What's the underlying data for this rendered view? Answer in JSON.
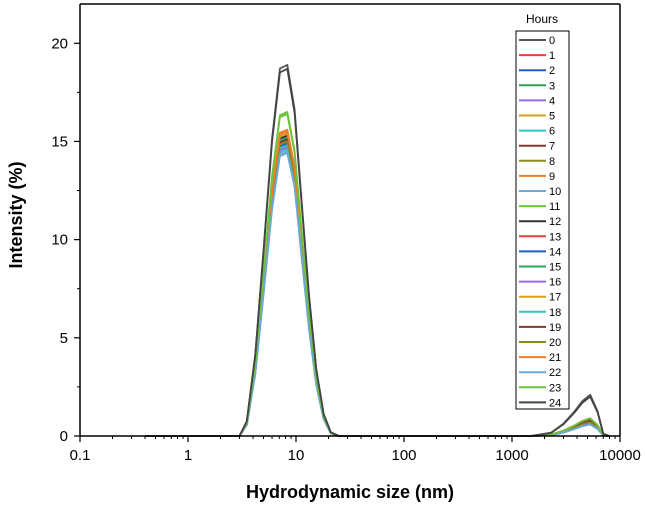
{
  "chart_data": {
    "type": "line",
    "xlabel": "Hydrodynamic size (nm)",
    "ylabel": "Intensity (%)",
    "x_scale": "log",
    "xlim": [
      0.1,
      10000
    ],
    "ylim": [
      0,
      22
    ],
    "x_ticks": [
      0.1,
      1,
      10,
      100,
      1000,
      10000
    ],
    "x_tick_labels": [
      "0.1",
      "1",
      "10",
      "100",
      "1000",
      "10000"
    ],
    "y_ticks": [
      0,
      5,
      10,
      15,
      20
    ],
    "y_tick_labels": [
      "0",
      "5",
      "10",
      "15",
      "20"
    ],
    "grid": false,
    "legend_title": "Hours",
    "legend_position": "top-right",
    "series": [
      {
        "name": "0",
        "color": "#555555",
        "peak": 18.9,
        "tail": 2.1
      },
      {
        "name": "1",
        "color": "#e8413a",
        "peak": 15.5,
        "tail": 0.9
      },
      {
        "name": "2",
        "color": "#1f5fc4",
        "peak": 15.2,
        "tail": 0.8
      },
      {
        "name": "3",
        "color": "#2ea05a",
        "peak": 15.0,
        "tail": 0.7
      },
      {
        "name": "4",
        "color": "#9b6be0",
        "peak": 14.8,
        "tail": 0.7
      },
      {
        "name": "5",
        "color": "#d8a21a",
        "peak": 14.9,
        "tail": 0.8
      },
      {
        "name": "6",
        "color": "#2ec7c2",
        "peak": 14.6,
        "tail": 0.6
      },
      {
        "name": "7",
        "color": "#7a3b2e",
        "peak": 14.7,
        "tail": 0.7
      },
      {
        "name": "8",
        "color": "#8f8a1e",
        "peak": 15.1,
        "tail": 0.8
      },
      {
        "name": "9",
        "color": "#f07d2a",
        "peak": 15.6,
        "tail": 0.9
      },
      {
        "name": "10",
        "color": "#6aa8d8",
        "peak": 14.4,
        "tail": 0.6
      },
      {
        "name": "11",
        "color": "#6cc33a",
        "peak": 16.5,
        "tail": 0.9
      },
      {
        "name": "12",
        "color": "#333333",
        "peak": 15.3,
        "tail": 0.8
      },
      {
        "name": "13",
        "color": "#e8413a",
        "peak": 15.0,
        "tail": 0.7
      },
      {
        "name": "14",
        "color": "#1f5fc4",
        "peak": 14.9,
        "tail": 0.7
      },
      {
        "name": "15",
        "color": "#2ea05a",
        "peak": 15.2,
        "tail": 0.8
      },
      {
        "name": "16",
        "color": "#9b6be0",
        "peak": 14.7,
        "tail": 0.6
      },
      {
        "name": "17",
        "color": "#d8a21a",
        "peak": 15.4,
        "tail": 0.9
      },
      {
        "name": "18",
        "color": "#2ec7c2",
        "peak": 14.8,
        "tail": 0.7
      },
      {
        "name": "19",
        "color": "#7a3b2e",
        "peak": 15.1,
        "tail": 0.8
      },
      {
        "name": "20",
        "color": "#8f8a1e",
        "peak": 15.0,
        "tail": 0.7
      },
      {
        "name": "21",
        "color": "#f07d2a",
        "peak": 15.5,
        "tail": 0.9
      },
      {
        "name": "22",
        "color": "#6aa8d8",
        "peak": 14.5,
        "tail": 0.6
      },
      {
        "name": "23",
        "color": "#6cc33a",
        "peak": 16.4,
        "tail": 0.9
      },
      {
        "name": "24",
        "color": "#444444",
        "peak": 18.7,
        "tail": 2.0
      }
    ]
  }
}
